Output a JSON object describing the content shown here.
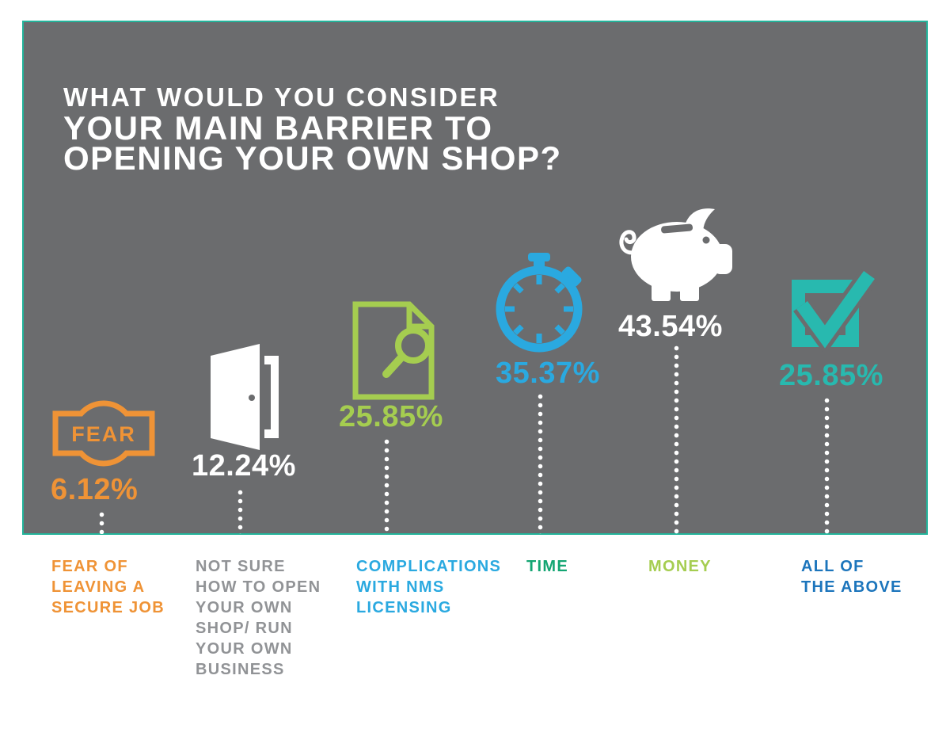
{
  "title": {
    "lines": [
      "WHAT WOULD YOU CONSIDER",
      "YOUR MAIN BARRIER TO",
      "OPENING YOUR OWN SHOP?"
    ]
  },
  "chart_data": {
    "type": "bar",
    "title": "WHAT WOULD YOU CONSIDER YOUR MAIN BARRIER TO OPENING YOUR OWN SHOP?",
    "categories": [
      "FEAR OF LEAVING A SECURE JOB",
      "NOT SURE HOW TO OPEN YOUR OWN SHOP/ RUN YOUR OWN BUSINESS",
      "COMPLICATIONS WITH NMS LICENSING",
      "TIME",
      "MONEY",
      "ALL OF THE ABOVE"
    ],
    "values": [
      6.12,
      12.24,
      25.85,
      35.37,
      43.54,
      25.85
    ],
    "value_labels": [
      "6.12%",
      "12.24%",
      "25.85%",
      "35.37%",
      "43.54%",
      "25.85%"
    ],
    "icons": [
      "fear-badge-icon",
      "open-door-icon",
      "document-magnifier-icon",
      "stopwatch-icon",
      "piggy-bank-icon",
      "checked-checkbox-icon"
    ],
    "legend_position": "none",
    "grid": false
  },
  "items": [
    {
      "pct": "6.12%",
      "badge_text": "FEAR",
      "label_lines": [
        "FEAR OF",
        "LEAVING A",
        "SECURE JOB"
      ]
    },
    {
      "pct": "12.24%",
      "label_lines": [
        "NOT SURE",
        "HOW TO OPEN",
        "YOUR OWN",
        "SHOP/ RUN",
        "YOUR OWN",
        "BUSINESS"
      ]
    },
    {
      "pct": "25.85%",
      "label_lines": [
        "COMPLICATIONS",
        "WITH NMS",
        "LICENSING"
      ]
    },
    {
      "pct": "35.37%",
      "label_lines": [
        "TIME"
      ]
    },
    {
      "pct": "43.54%",
      "label_lines": [
        "MONEY"
      ]
    },
    {
      "pct": "25.85%",
      "label_lines": [
        "ALL OF",
        "THE ABOVE"
      ]
    }
  ],
  "colors": {
    "panel_bg": "#6b6c6e",
    "panel_border": "#23b49b",
    "orange": "#ef9336",
    "light_green": "#a5cd50",
    "blue": "#2aa9e0",
    "teal": "#28b9af",
    "kelly_green": "#14a573",
    "dark_blue": "#1c75bc",
    "gray_text": "#919396",
    "white": "#ffffff"
  }
}
